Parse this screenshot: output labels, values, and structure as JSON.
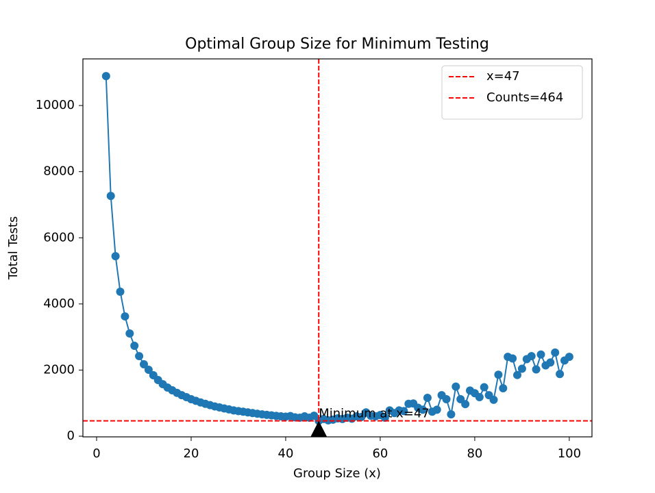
{
  "chart_data": {
    "type": "line",
    "title": "Optimal Group Size for Minimum Testing",
    "x_label": "Group Size (x)",
    "y_label": "Total Tests",
    "x": [
      2,
      3,
      4,
      5,
      6,
      7,
      8,
      9,
      10,
      11,
      12,
      13,
      14,
      15,
      16,
      17,
      18,
      19,
      20,
      21,
      22,
      23,
      24,
      25,
      26,
      27,
      28,
      29,
      30,
      31,
      32,
      33,
      34,
      35,
      36,
      37,
      38,
      39,
      40,
      41,
      42,
      43,
      44,
      45,
      46,
      47,
      48,
      49,
      50,
      51,
      52,
      53,
      54,
      55,
      56,
      57,
      58,
      59,
      60,
      61,
      62,
      63,
      64,
      65,
      66,
      67,
      68,
      69,
      70,
      71,
      72,
      73,
      74,
      75,
      76,
      77,
      78,
      79,
      80,
      81,
      82,
      83,
      84,
      85,
      86,
      87,
      88,
      89,
      90,
      91,
      92,
      93,
      94,
      95,
      96,
      97,
      98,
      99,
      100
    ],
    "values": [
      10890,
      7267,
      5445,
      4369,
      3623,
      3106,
      2733,
      2422,
      2174,
      2008,
      1843,
      1698,
      1573,
      1470,
      1387,
      1310,
      1240,
      1180,
      1120,
      1070,
      1020,
      980,
      940,
      900,
      870,
      840,
      810,
      780,
      760,
      740,
      720,
      700,
      680,
      660,
      645,
      630,
      615,
      600,
      590,
      610,
      570,
      560,
      600,
      560,
      620,
      464,
      520,
      480,
      500,
      540,
      520,
      560,
      530,
      600,
      580,
      720,
      620,
      600,
      640,
      560,
      780,
      700,
      780,
      760,
      980,
      990,
      860,
      800,
      1160,
      740,
      800,
      1240,
      1120,
      660,
      1500,
      1120,
      970,
      1380,
      1300,
      1180,
      1480,
      1240,
      1100,
      1860,
      1450,
      2400,
      2350,
      1850,
      2040,
      2330,
      2420,
      2020,
      2470,
      2140,
      2230,
      2530,
      1880,
      2290,
      2400
    ],
    "color": "#1f77b4",
    "vlines": [
      {
        "value": 47,
        "label": "x=47",
        "color": "#ff0000"
      }
    ],
    "hlines": [
      {
        "value": 464,
        "label": "Counts=464",
        "color": "#ff0000"
      }
    ],
    "annotation": {
      "text": "Minimum at x=47",
      "x": 47,
      "y": 464
    },
    "xlim": [
      -2.9,
      104.8
    ],
    "ylim": [
      -20,
      11410
    ],
    "xticks": [
      0,
      20,
      40,
      60,
      80,
      100
    ],
    "yticks": [
      0,
      2000,
      4000,
      6000,
      8000,
      10000
    ],
    "legend": "upper right"
  }
}
